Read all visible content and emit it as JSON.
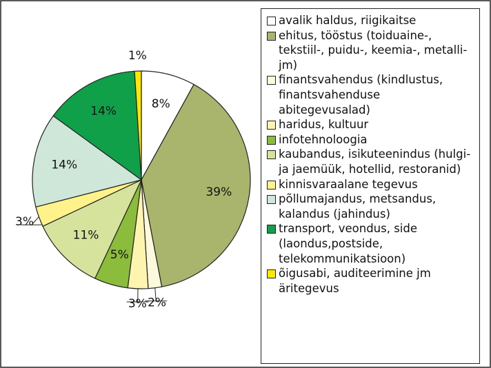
{
  "chart_data": {
    "type": "pie",
    "categories": [
      "avalik haldus, riigikaitse",
      "ehitus, tööstus (toiduaine-, tekstiil-, puidu-, keemia-, metalli- jm)",
      "finantsvahendus (kindlustus, finantsvahenduse abitegevusalad)",
      "haridus, kultuur",
      "infotehnoloogia",
      "kaubandus, isikuteenindus (hulgi- ja jaemüük, hotellid, restoranid)",
      "kinnisvaraalane tegevus",
      "põllumajandus, metsandus, kalandus (jahindus)",
      "transport, veondus, side (laondus,postside, telekommunikatsioon)",
      "õigusabi, auditeerimine jm äritegevus"
    ],
    "values": [
      8,
      39,
      2,
      3,
      5,
      11,
      3,
      14,
      14,
      1
    ],
    "value_labels": [
      "8%",
      "39%",
      "2%",
      "3%",
      "5%",
      "11%",
      "3%",
      "14%",
      "14%",
      "1%"
    ],
    "colors": [
      "#ffffff",
      "#a9b46c",
      "#fdf9dc",
      "#fdf4b0",
      "#8cbc3c",
      "#d6e39c",
      "#fff28a",
      "#cfe7d8",
      "#10a04a",
      "#fde800"
    ]
  }
}
